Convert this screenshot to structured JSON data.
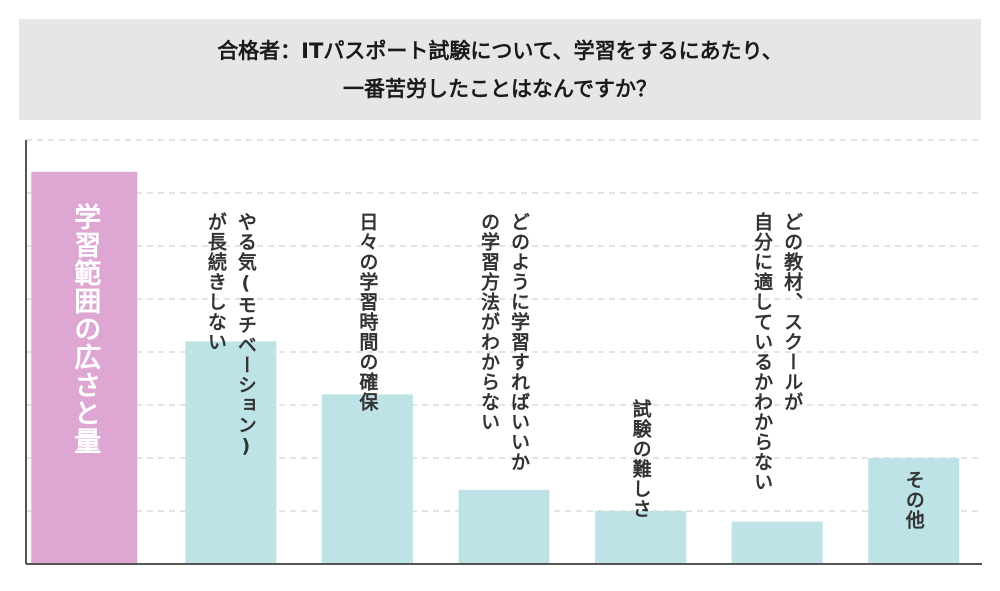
{
  "colors": {
    "title_bg": "#e6e6e6",
    "highlight_bar": "#dda6d3",
    "bar": "#bde3e7",
    "grid": "#c8c8c8",
    "axis": "#555555"
  },
  "chart_data": {
    "type": "bar",
    "title": "合格者：ITパスポート試験について、学習をするにあたり、\n一番苦労したことはなんですか？",
    "xlabel": "",
    "ylabel": "",
    "categories": [
      "学習範囲の広さと量",
      "やる気(モチベーション)\nが長続きしない",
      "日々の学習時間の確保",
      "どのように学習すればいいか\nの学習方法がわからない",
      "試験の難しさ",
      "どの教材、スクールが\n自分に適しているかわからない",
      "その他"
    ],
    "values": [
      7.4,
      4.2,
      3.2,
      1.4,
      1.0,
      0.8,
      2.0
    ],
    "highlight_index": 0,
    "ylim": [
      0,
      8
    ],
    "grid": true,
    "y_tick_labels_shown": false,
    "legend": "none"
  }
}
